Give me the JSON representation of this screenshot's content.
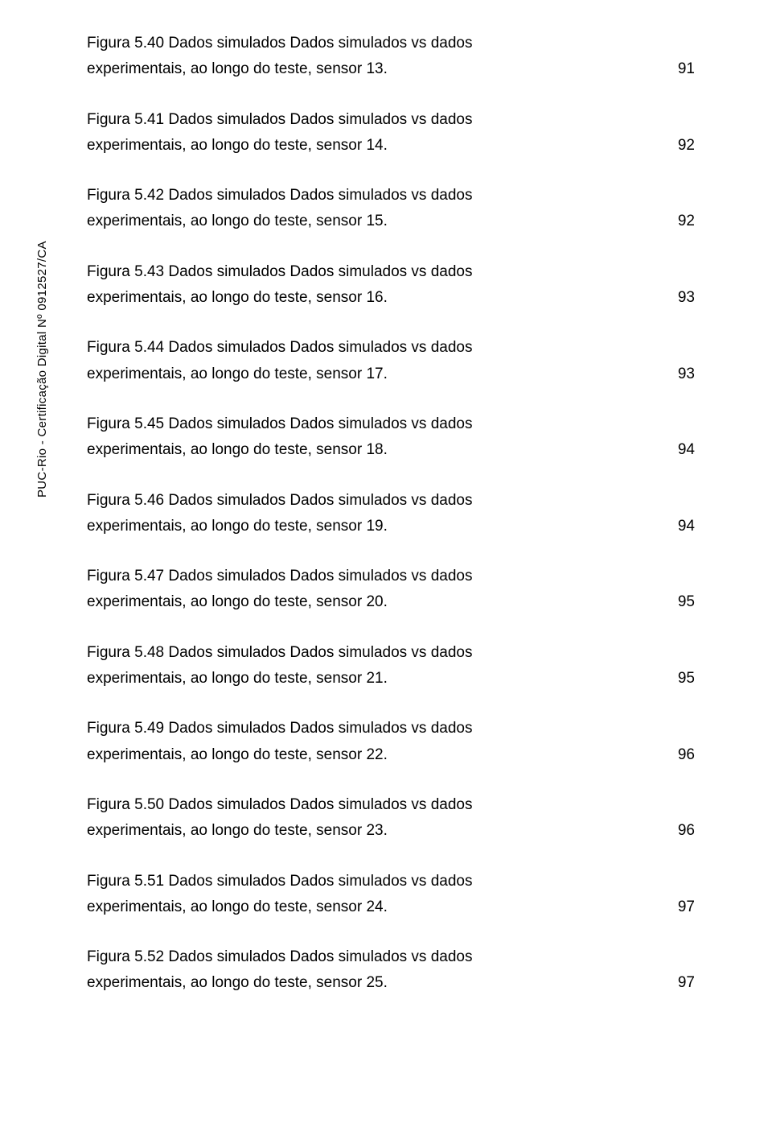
{
  "sidebar_text": "PUC-Rio - Certificação Digital Nº 0912527/CA",
  "entries": [
    {
      "line1": "Figura 5.40 Dados simulados Dados simulados vs dados",
      "line2": "experimentais, ao longo do teste, sensor 13.",
      "page": "91"
    },
    {
      "line1": "Figura 5.41 Dados simulados Dados simulados vs dados",
      "line2": "experimentais, ao longo do teste, sensor 14.",
      "page": "92"
    },
    {
      "line1": "Figura 5.42 Dados simulados Dados simulados vs dados",
      "line2": "experimentais, ao longo do teste, sensor 15.",
      "page": "92"
    },
    {
      "line1": "Figura 5.43 Dados simulados Dados simulados vs dados",
      "line2": "experimentais, ao longo do teste, sensor 16.",
      "page": "93"
    },
    {
      "line1": "Figura 5.44 Dados simulados Dados simulados vs dados",
      "line2": "experimentais, ao longo do teste, sensor 17.",
      "page": "93"
    },
    {
      "line1": "Figura 5.45 Dados simulados Dados simulados vs dados",
      "line2": "experimentais, ao longo do teste, sensor 18.",
      "page": "94"
    },
    {
      "line1": "Figura 5.46 Dados simulados Dados simulados vs dados",
      "line2": "experimentais, ao longo do teste, sensor 19.",
      "page": "94"
    },
    {
      "line1": "Figura 5.47 Dados simulados Dados simulados vs dados",
      "line2": "experimentais, ao longo do teste, sensor 20.",
      "page": "95"
    },
    {
      "line1": "Figura 5.48 Dados simulados Dados simulados vs dados",
      "line2": "experimentais, ao longo do teste, sensor 21.",
      "page": "95"
    },
    {
      "line1": "Figura 5.49 Dados simulados Dados simulados vs dados",
      "line2": "experimentais, ao longo do teste, sensor 22.",
      "page": "96"
    },
    {
      "line1": "Figura 5.50 Dados simulados Dados simulados vs dados",
      "line2": "experimentais, ao longo do teste, sensor 23.",
      "page": "96"
    },
    {
      "line1": "Figura 5.51 Dados simulados Dados simulados vs dados",
      "line2": "experimentais, ao longo do teste, sensor 24.",
      "page": "97"
    },
    {
      "line1": "Figura 5.52 Dados simulados Dados simulados vs dados",
      "line2": "experimentais, ao longo do teste, sensor 25.",
      "page": "97"
    }
  ]
}
